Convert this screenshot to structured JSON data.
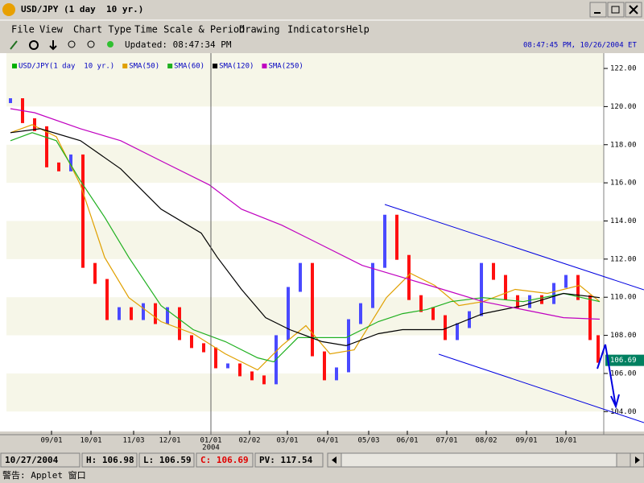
{
  "window": {
    "title": "USD/JPY (1 day  10 yr.)",
    "menu": [
      "File",
      "View",
      "Chart Type",
      "Time Scale & Period",
      "Drawing",
      "Indicators",
      "Help"
    ],
    "updated": "Updated: 08:47:34 PM",
    "clock": "08:47:45 PM, 10/26/2004 ET",
    "status": [
      "10/27/2004",
      "H: 106.98",
      "L: 106.59",
      "C: 106.69",
      "PV: 117.54"
    ],
    "footer": "警告: Applet 窗口"
  },
  "chart_data": {
    "type": "line",
    "xlim": [
      0,
      148.4
    ],
    "ylim": [
      103,
      122.55
    ],
    "yticks": [
      {
        "value": 104,
        "label": "104.00"
      },
      {
        "value": 106,
        "label": "106.00"
      },
      {
        "value": 108,
        "label": "108.00"
      },
      {
        "value": 110,
        "label": "110.00"
      },
      {
        "value": 112,
        "label": "112.00"
      },
      {
        "value": 114,
        "label": "114.00"
      },
      {
        "value": 116,
        "label": "116.00"
      },
      {
        "value": 118,
        "label": "118.00"
      },
      {
        "value": 120,
        "label": "120.00"
      },
      {
        "value": 122,
        "label": "122.00"
      }
    ],
    "xticks": [
      {
        "value": 11.2,
        "label": "09/01"
      },
      {
        "value": 21,
        "label": "10/01"
      },
      {
        "value": 31.6,
        "label": "11/03"
      },
      {
        "value": 40.6,
        "label": "12/01"
      },
      {
        "value": 50.8,
        "label": "01/01"
      },
      {
        "value": 60.4,
        "label": "02/02"
      },
      {
        "value": 69.8,
        "label": "03/01"
      },
      {
        "value": 79.8,
        "label": "04/01"
      },
      {
        "value": 90,
        "label": "05/03"
      },
      {
        "value": 99.6,
        "label": "06/01"
      },
      {
        "value": 109.4,
        "label": "07/01"
      },
      {
        "value": 119.2,
        "label": "08/02"
      },
      {
        "value": 129.2,
        "label": "09/01"
      },
      {
        "value": 139,
        "label": "10/01"
      }
    ],
    "year_label": "2004",
    "last_price": 106.69,
    "series": [
      {
        "name": "USD/JPY(1 day  10 yr.)",
        "color": "#00b000",
        "up_color": "#4a4aff",
        "down_color": "#ff1010",
        "x": [
          1,
          4,
          7,
          10,
          13,
          16,
          19,
          22,
          25,
          28,
          31,
          34,
          37,
          40,
          43,
          46,
          49,
          52,
          55,
          58,
          61,
          64,
          67,
          70,
          73,
          76,
          79,
          82,
          85,
          88,
          91,
          94,
          97,
          100,
          103,
          106,
          109,
          112,
          115,
          118,
          121,
          124,
          127,
          130,
          133,
          136,
          139,
          142,
          145,
          147
        ],
        "values": [
          120.31,
          119.26,
          118.84,
          116.94,
          116.73,
          117.36,
          111.67,
          110.83,
          108.93,
          109.35,
          108.93,
          109.56,
          108.72,
          109.35,
          107.88,
          107.46,
          107.24,
          106.4,
          106.4,
          105.98,
          105.77,
          105.56,
          107.88,
          110.41,
          111.67,
          107.03,
          105.77,
          106.19,
          108.72,
          109.56,
          111.67,
          114.2,
          112.09,
          109.98,
          109.35,
          108.93,
          107.88,
          108.51,
          109.14,
          111.67,
          111.04,
          109.98,
          109.56,
          109.98,
          109.77,
          110.62,
          111.04,
          109.98,
          107.88,
          106.69
        ]
      },
      {
        "name": "SMA(50)",
        "color": "#e0a000",
        "x": [
          1,
          6.4,
          12.4,
          18.4,
          24.4,
          30.4,
          38.4,
          46.4,
          54.4,
          62.4,
          68.4,
          74.4,
          80.4,
          86.4,
          94.4,
          100.4,
          106.4,
          112.4,
          118.4,
          126.4,
          134.4,
          142.4,
          147.4
        ],
        "values": [
          118.63,
          119.05,
          118.42,
          115.89,
          112.09,
          109.98,
          108.72,
          108.09,
          107.03,
          106.19,
          107.46,
          108.51,
          107.03,
          107.24,
          109.98,
          111.25,
          110.62,
          109.56,
          109.77,
          110.41,
          110.2,
          110.62,
          109.77
        ]
      },
      {
        "name": "SMA(60)",
        "color": "#20b020",
        "x": [
          1,
          6.4,
          12.4,
          18.4,
          24.4,
          30.4,
          38.4,
          46.4,
          54.4,
          62.4,
          66.4,
          72.4,
          78.4,
          84.4,
          92.4,
          98.4,
          104.4,
          110.4,
          118.4,
          128.4,
          138.4,
          147.4
        ],
        "values": [
          118.21,
          118.63,
          118.21,
          116.1,
          114.2,
          112.09,
          109.56,
          108.3,
          107.67,
          106.82,
          106.61,
          107.88,
          107.88,
          107.88,
          108.72,
          109.14,
          109.35,
          109.77,
          109.98,
          109.77,
          110.2,
          109.77
        ]
      },
      {
        "name": "SMA(120)",
        "color": "#000000",
        "x": [
          1,
          8.4,
          18.4,
          28.4,
          38.4,
          48.4,
          52.4,
          58.4,
          64.4,
          70.4,
          78.4,
          84.4,
          92.4,
          98.4,
          108.4,
          118.4,
          128.4,
          138.4,
          147.4
        ],
        "values": [
          118.63,
          118.84,
          118.21,
          116.73,
          114.62,
          113.36,
          112.09,
          110.41,
          108.93,
          108.3,
          107.67,
          107.46,
          108.09,
          108.3,
          108.3,
          109.14,
          109.56,
          110.2,
          109.98
        ]
      },
      {
        "name": "SMA(250)",
        "color": "#c000c0",
        "x": [
          1,
          7,
          18.4,
          28.4,
          38.4,
          50.4,
          58.4,
          68.4,
          78.4,
          88.4,
          98.4,
          108.4,
          118.4,
          128.4,
          138.4,
          147.4
        ],
        "values": [
          119.89,
          119.68,
          118.84,
          118.21,
          117.15,
          115.89,
          114.62,
          113.78,
          112.73,
          111.67,
          111.04,
          110.41,
          109.77,
          109.35,
          108.93,
          108.85
        ]
      }
    ]
  }
}
